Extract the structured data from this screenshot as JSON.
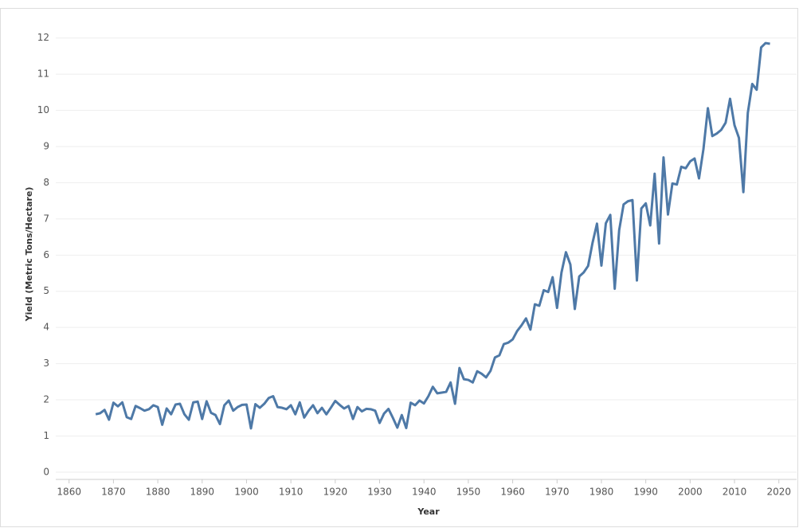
{
  "chart_data": {
    "type": "line",
    "xlabel": "Year",
    "ylabel": "Yield (Metric Tons/Hectare)",
    "x": [
      1866,
      1867,
      1868,
      1869,
      1870,
      1871,
      1872,
      1873,
      1874,
      1875,
      1876,
      1877,
      1878,
      1879,
      1880,
      1881,
      1882,
      1883,
      1884,
      1885,
      1886,
      1887,
      1888,
      1889,
      1890,
      1891,
      1892,
      1893,
      1894,
      1895,
      1896,
      1897,
      1898,
      1899,
      1900,
      1901,
      1902,
      1903,
      1904,
      1905,
      1906,
      1907,
      1908,
      1909,
      1910,
      1911,
      1912,
      1913,
      1914,
      1915,
      1916,
      1917,
      1918,
      1919,
      1920,
      1921,
      1922,
      1923,
      1924,
      1925,
      1926,
      1927,
      1928,
      1929,
      1930,
      1931,
      1932,
      1933,
      1934,
      1935,
      1936,
      1937,
      1938,
      1939,
      1940,
      1941,
      1942,
      1943,
      1944,
      1945,
      1946,
      1947,
      1948,
      1949,
      1950,
      1951,
      1952,
      1953,
      1954,
      1955,
      1956,
      1957,
      1958,
      1959,
      1960,
      1961,
      1962,
      1963,
      1964,
      1965,
      1966,
      1967,
      1968,
      1969,
      1970,
      1971,
      1972,
      1973,
      1974,
      1975,
      1976,
      1977,
      1978,
      1979,
      1980,
      1981,
      1982,
      1983,
      1984,
      1985,
      1986,
      1987,
      1988,
      1989,
      1990,
      1991,
      1992,
      1993,
      1994,
      1995,
      1996,
      1997,
      1998,
      1999,
      2000,
      2001,
      2002,
      2003,
      2004,
      2005,
      2006,
      2007,
      2008,
      2009,
      2010,
      2011,
      2012,
      2013,
      2014,
      2015,
      2016,
      2017,
      2018
    ],
    "values": [
      1.6,
      1.63,
      1.72,
      1.45,
      1.92,
      1.82,
      1.93,
      1.52,
      1.47,
      1.83,
      1.77,
      1.7,
      1.74,
      1.85,
      1.8,
      1.31,
      1.76,
      1.6,
      1.87,
      1.89,
      1.6,
      1.45,
      1.93,
      1.95,
      1.47,
      1.96,
      1.64,
      1.58,
      1.33,
      1.85,
      1.98,
      1.7,
      1.8,
      1.86,
      1.87,
      1.21,
      1.88,
      1.78,
      1.89,
      2.05,
      2.1,
      1.8,
      1.78,
      1.74,
      1.85,
      1.6,
      1.93,
      1.51,
      1.7,
      1.85,
      1.63,
      1.78,
      1.6,
      1.78,
      1.97,
      1.86,
      1.76,
      1.83,
      1.47,
      1.8,
      1.68,
      1.75,
      1.74,
      1.7,
      1.36,
      1.62,
      1.75,
      1.5,
      1.23,
      1.58,
      1.22,
      1.92,
      1.85,
      1.98,
      1.9,
      2.1,
      2.36,
      2.18,
      2.2,
      2.22,
      2.48,
      1.89,
      2.88,
      2.57,
      2.55,
      2.48,
      2.79,
      2.72,
      2.62,
      2.8,
      3.17,
      3.23,
      3.54,
      3.58,
      3.67,
      3.9,
      4.06,
      4.25,
      3.94,
      4.64,
      4.6,
      5.03,
      4.98,
      5.39,
      4.54,
      5.52,
      6.08,
      5.74,
      4.51,
      5.41,
      5.52,
      5.7,
      6.34,
      6.87,
      5.71,
      6.88,
      7.11,
      5.07,
      6.69,
      7.4,
      7.49,
      7.52,
      5.3,
      7.29,
      7.43,
      6.82,
      8.25,
      6.32,
      8.7,
      7.12,
      7.98,
      7.95,
      8.44,
      8.4,
      8.59,
      8.67,
      8.12,
      8.93,
      10.06,
      9.29,
      9.36,
      9.46,
      9.66,
      10.32,
      9.59,
      9.24,
      7.74,
      9.93,
      10.73,
      10.57,
      11.74,
      11.86,
      11.84
    ],
    "color": "#4e79a7",
    "xlim": [
      1857,
      2024
    ],
    "xticks": [
      1860,
      1870,
      1880,
      1890,
      1900,
      1910,
      1920,
      1930,
      1940,
      1950,
      1960,
      1970,
      1980,
      1990,
      2000,
      2010,
      2020
    ],
    "ylim": [
      -0.2,
      12.5
    ],
    "yticks": [
      0,
      1,
      2,
      3,
      4,
      5,
      6,
      7,
      8,
      9,
      10,
      11,
      12
    ],
    "grid": true
  }
}
